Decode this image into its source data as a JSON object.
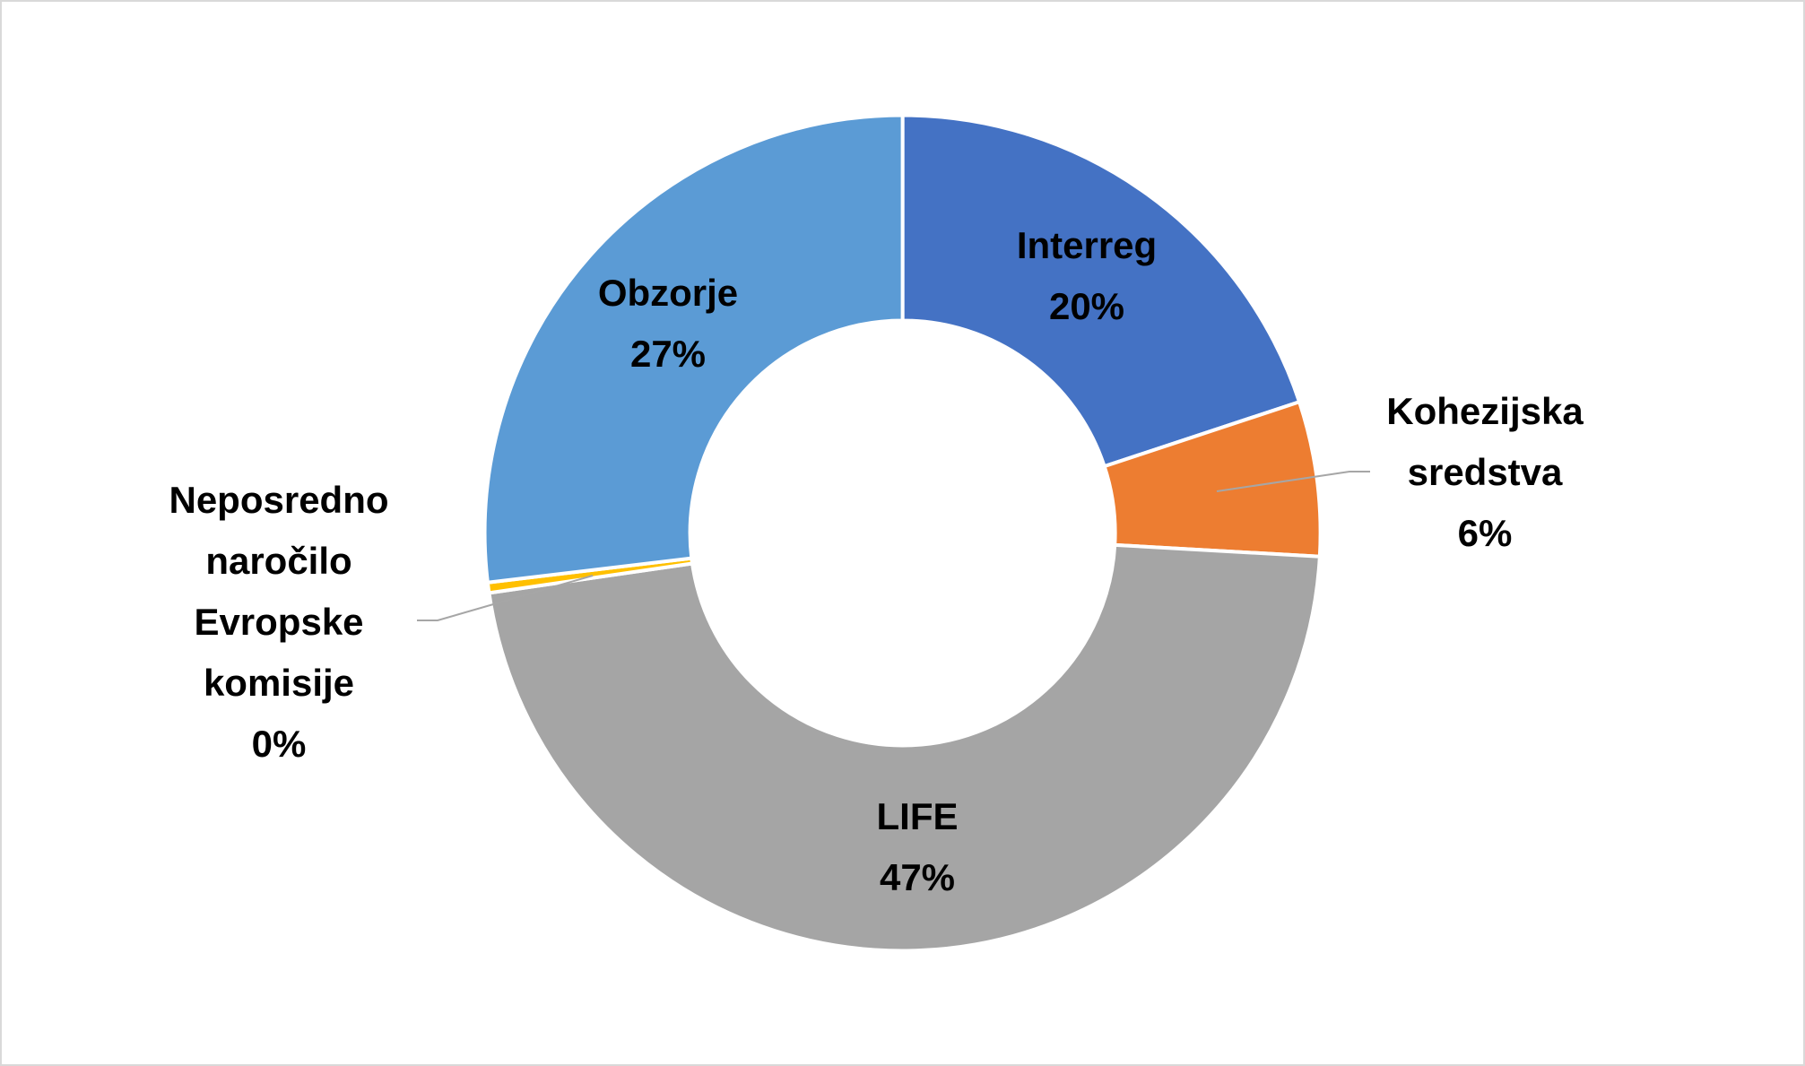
{
  "chart_data": {
    "type": "donut",
    "categories": [
      "Interreg",
      "Kohezijska sredstva",
      "LIFE",
      "Neposredno naročilo Evropske komisije",
      "Obzorje"
    ],
    "values": [
      20,
      6,
      47,
      0.4,
      27
    ],
    "value_labels": [
      "20%",
      "6%",
      "47%",
      "0%",
      "27%"
    ],
    "colors": [
      "#4472c4",
      "#ed7d31",
      "#a5a5a5",
      "#ffc000",
      "#5b9bd5"
    ]
  }
}
